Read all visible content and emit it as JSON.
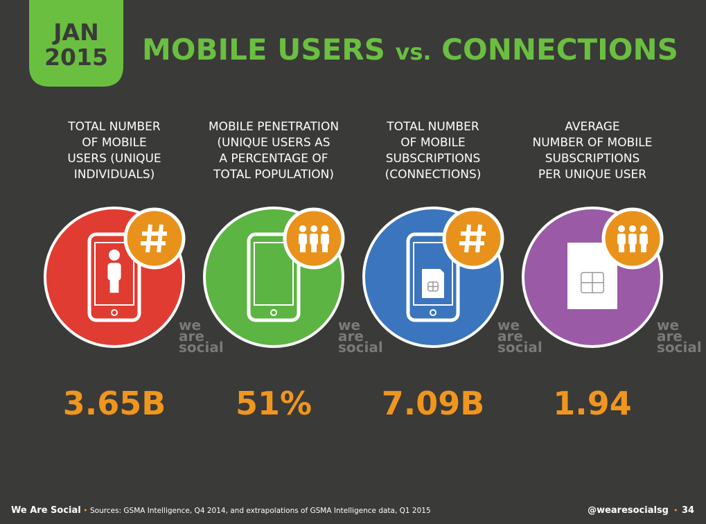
{
  "header": {
    "badge": [
      "JAN",
      "2015"
    ],
    "title": [
      "MOBILE USERS",
      "vs.",
      "CONNECTIONS"
    ]
  },
  "stats": [
    {
      "label": [
        "TOTAL NUMBER",
        "OF MOBILE",
        "USERS (UNIQUE",
        "INDIVIDUALS)"
      ],
      "value": "3.65B",
      "color": "#e03c31",
      "icon": "phone-person",
      "badge": "hash"
    },
    {
      "label": [
        "MOBILE PENETRATION",
        "(UNIQUE USERS AS",
        "A PERCENTAGE OF",
        "TOTAL POPULATION)"
      ],
      "value": "51%",
      "color": "#5cb443",
      "icon": "phone",
      "badge": "people"
    },
    {
      "label": [
        "TOTAL NUMBER",
        "OF MOBILE",
        "SUBSCRIPTIONS",
        "(CONNECTIONS)"
      ],
      "value": "7.09B",
      "color": "#3b75bd",
      "icon": "phone-sim",
      "badge": "hash"
    },
    {
      "label": [
        "AVERAGE",
        "NUMBER OF MOBILE",
        "SUBSCRIPTIONS",
        "PER UNIQUE USER"
      ],
      "value": "1.94",
      "color": "#9a5aa6",
      "icon": "sim",
      "badge": "people"
    }
  ],
  "watermark": [
    "we",
    "are",
    "social"
  ],
  "footer": {
    "brand": "We Are Social",
    "source": "Sources: GSMA Intelligence, Q4 2014, and extrapolations of GSMA Intelligence data, Q1 2015",
    "handle": "@wearesocialsg",
    "page": "34"
  }
}
